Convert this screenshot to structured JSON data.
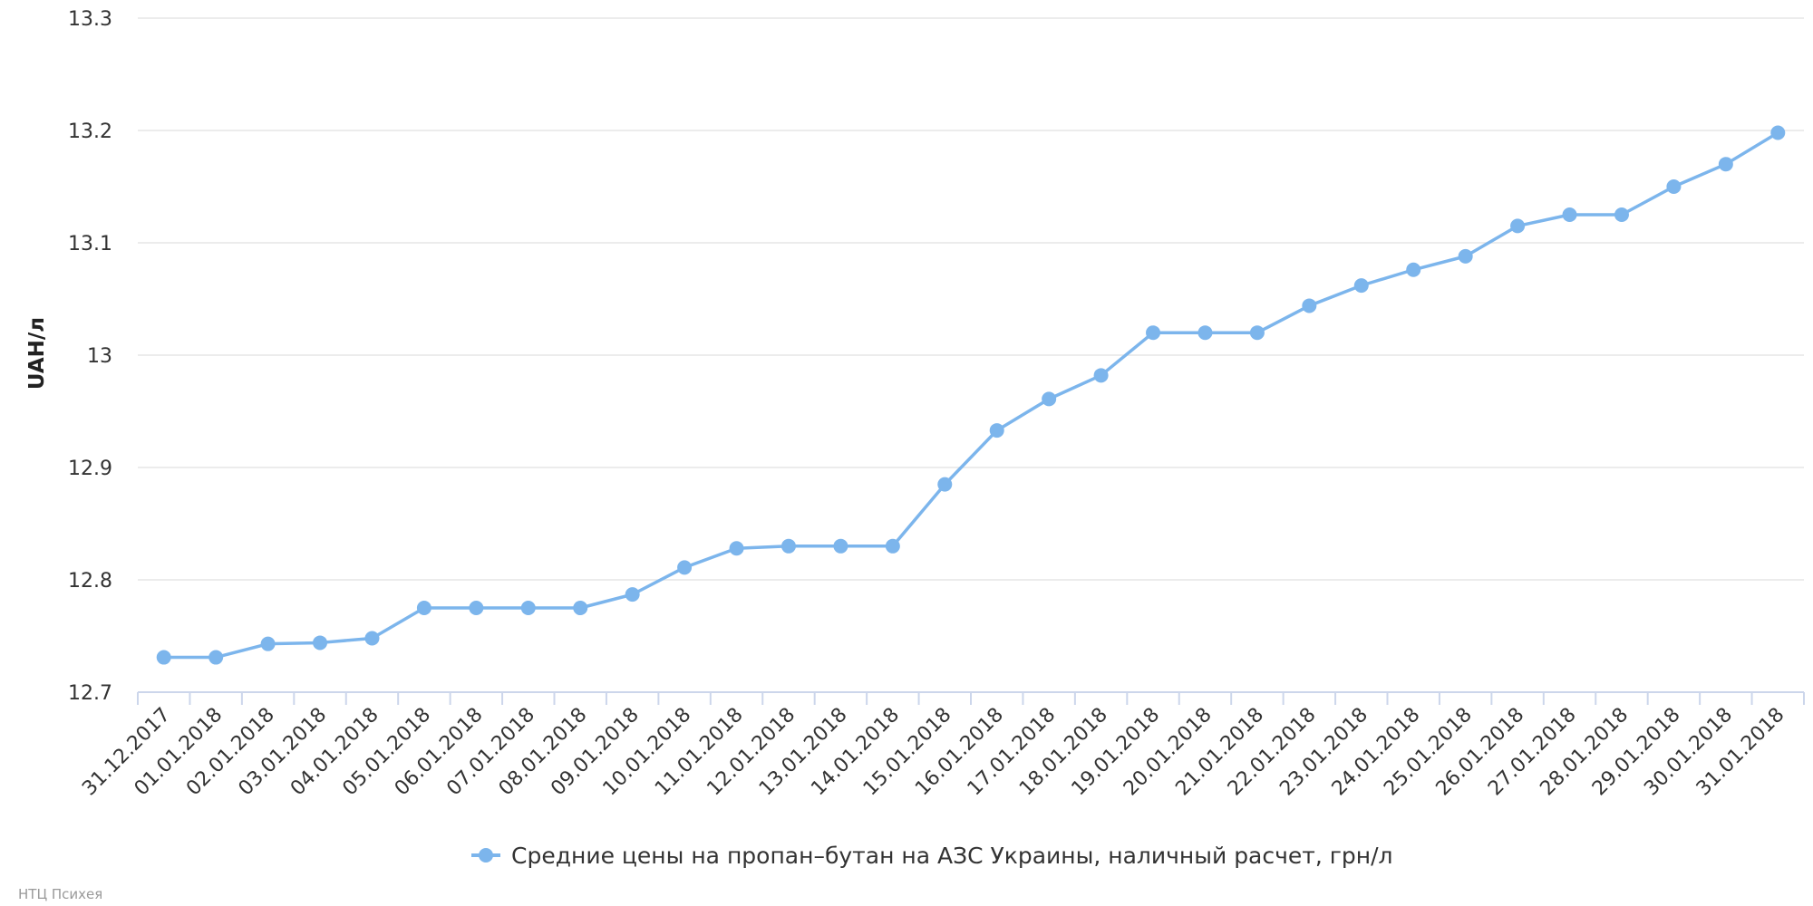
{
  "chart_data": {
    "type": "line",
    "ylabel": "UAH/л",
    "ylim": [
      12.7,
      13.3
    ],
    "yticks": [
      "12.7",
      "12.8",
      "12.9",
      "13",
      "13.1",
      "13.2",
      "13.3"
    ],
    "grid": true,
    "legend_position": "bottom-center",
    "categories": [
      "31.12.2017",
      "01.01.2018",
      "02.01.2018",
      "03.01.2018",
      "04.01.2018",
      "05.01.2018",
      "06.01.2018",
      "07.01.2018",
      "08.01.2018",
      "09.01.2018",
      "10.01.2018",
      "11.01.2018",
      "12.01.2018",
      "13.01.2018",
      "14.01.2018",
      "15.01.2018",
      "16.01.2018",
      "17.01.2018",
      "18.01.2018",
      "19.01.2018",
      "20.01.2018",
      "21.01.2018",
      "22.01.2018",
      "23.01.2018",
      "24.01.2018",
      "25.01.2018",
      "26.01.2018",
      "27.01.2018",
      "28.01.2018",
      "29.01.2018",
      "30.01.2018",
      "31.01.2018"
    ],
    "series": [
      {
        "name": "Средние цены на пропан–бутан на АЗС Украины, наличный расчет, грн/л",
        "color": "#7cb5ec",
        "values": [
          12.731,
          12.731,
          12.743,
          12.744,
          12.748,
          12.775,
          12.775,
          12.775,
          12.775,
          12.787,
          12.811,
          12.828,
          12.83,
          12.83,
          12.83,
          12.885,
          12.933,
          12.961,
          12.982,
          13.02,
          13.02,
          13.02,
          13.044,
          13.062,
          13.076,
          13.088,
          13.115,
          13.125,
          13.125,
          13.15,
          13.17,
          13.198
        ]
      }
    ]
  },
  "credits": "НТЦ Психея"
}
